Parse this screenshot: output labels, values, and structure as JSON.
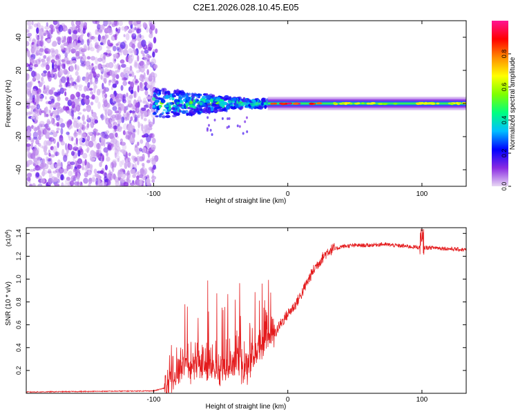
{
  "title": "C2E1.2026.028.10.45.E05",
  "colors": {
    "snr_line": "#e41a1c",
    "axis": "#000000",
    "spectrogram_bg": "#ffffff"
  },
  "chart_data": [
    {
      "type": "heatmap",
      "name": "spectrogram",
      "xlabel": "Height of straight line (km)",
      "ylabel": "Frequency (Hz)",
      "xlim": [
        -195,
        133
      ],
      "ylim": [
        -50,
        50
      ],
      "xticks": [
        -100,
        0,
        100
      ],
      "xtick_labels": [
        "-100",
        "0",
        "100"
      ],
      "yticks": [
        -40,
        -20,
        0,
        20,
        40
      ],
      "ytick_labels": [
        "-40",
        "-20",
        "0",
        "20",
        "40"
      ],
      "noise_region_km": [
        -195,
        -100
      ],
      "carrier_frequency_hz": 0,
      "colorbar": {
        "label": "Normalized spectral amplitude",
        "range": [
          0,
          1
        ],
        "ticks": [
          0.0,
          0.2,
          0.4,
          0.6,
          0.8
        ],
        "tick_labels": [
          "0.0",
          "0.2",
          "0.4",
          "0.6",
          "0.8"
        ],
        "colormap": [
          "#e8d8f4",
          "#8a2be2",
          "#0000ff",
          "#00bfff",
          "#00ff7f",
          "#7fff00",
          "#ffff00",
          "#ff8c00",
          "#ff0000",
          "#ff1493"
        ]
      }
    },
    {
      "type": "line",
      "name": "snr",
      "xlabel": "Height of straight line (km)",
      "ylabel": "SNR (10 * v/v)",
      "scale_label": "(x10",
      "scale_exponent": "4",
      "scale_suffix": ")",
      "xlim": [
        -195,
        133
      ],
      "ylim": [
        0,
        1.45
      ],
      "xticks": [
        -100,
        0,
        100
      ],
      "xtick_labels": [
        "-100",
        "0",
        "100"
      ],
      "yticks": [
        0.2,
        0.4,
        0.6,
        0.8,
        1.0,
        1.2,
        1.4
      ],
      "ytick_labels": [
        "0.2",
        "0.4",
        "0.6",
        "0.8",
        "1.0",
        "1.2",
        "1.4"
      ],
      "profile": {
        "x": [
          -195,
          -150,
          -100,
          -90,
          -85,
          -80,
          -70,
          -60,
          -50,
          -40,
          -30,
          -25,
          -20,
          -15,
          -10,
          -5,
          0,
          5,
          10,
          15,
          20,
          25,
          30,
          40,
          50,
          60,
          70,
          80,
          90,
          100,
          110,
          120,
          133
        ],
        "y": [
          0.01,
          0.015,
          0.02,
          0.05,
          0.12,
          0.2,
          0.22,
          0.2,
          0.18,
          0.2,
          0.25,
          0.3,
          0.38,
          0.45,
          0.5,
          0.6,
          0.68,
          0.75,
          0.85,
          0.97,
          1.08,
          1.16,
          1.23,
          1.28,
          1.29,
          1.29,
          1.3,
          1.29,
          1.28,
          1.27,
          1.27,
          1.26,
          1.25
        ]
      }
    }
  ]
}
